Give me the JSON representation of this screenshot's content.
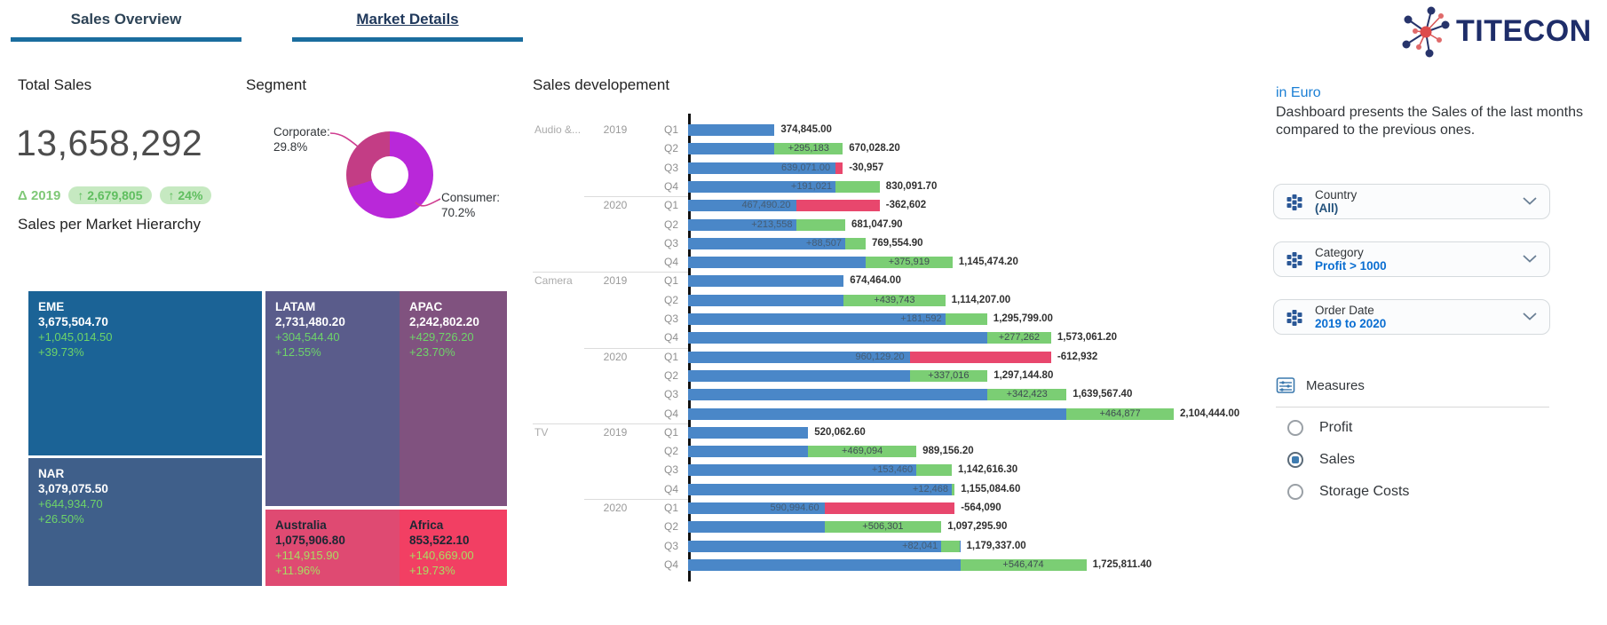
{
  "tabs": [
    {
      "label": "Sales Overview",
      "active": true
    },
    {
      "label": "Market Details",
      "active": false
    }
  ],
  "kpi": {
    "title": "Total Sales",
    "value": "13,658,292",
    "delta_year": "Δ 2019",
    "badges": [
      "↑ 2,679,805",
      "↑ 24%"
    ]
  },
  "segment": {
    "title": "Segment",
    "slices": [
      {
        "name": "Consumer",
        "pct": 70.2,
        "color": "#b928d9"
      },
      {
        "name": "Corporate",
        "pct": 29.8,
        "color": "#c33d85"
      }
    ],
    "corporate_label": "Corporate:",
    "corporate_pct": "29.8%",
    "consumer_label": "Consumer:",
    "consumer_pct": "70.2%",
    "leader_line_color": "#cf3d90"
  },
  "treemap": {
    "title": "Sales per Market Hierarchy",
    "tiles": [
      {
        "name": "EME",
        "value": "3,675,504.70",
        "delta": "+1,045,014.50",
        "pct": "+39.73%",
        "color": "#1b6396",
        "dark": false
      },
      {
        "name": "NAR",
        "value": "3,079,075.50",
        "delta": "+644,934.70",
        "pct": "+26.50%",
        "color": "#3f5f8a",
        "dark": false
      },
      {
        "name": "LATAM",
        "value": "2,731,480.20",
        "delta": "+304,544.40",
        "pct": "+12.55%",
        "color": "#5a5c8b",
        "dark": false
      },
      {
        "name": "Australia",
        "value": "1,075,906.80",
        "delta": "+114,915.90",
        "pct": "+11.96%",
        "color": "#df4a72",
        "dark": true
      },
      {
        "name": "APAC",
        "value": "2,242,802.20",
        "delta": "+429,726.20",
        "pct": "+23.70%",
        "color": "#80527f",
        "dark": false
      },
      {
        "name": "Africa",
        "value": "853,522.10",
        "delta": "+140,669.00",
        "pct": "+19.73%",
        "color": "#f23f63",
        "dark": true
      }
    ]
  },
  "chart_data": {
    "type": "bar",
    "title": "Sales developement",
    "orientation": "horizontal",
    "legend": "none",
    "axis": {
      "min_value": 0,
      "max_value": 2104444,
      "gridlines": false
    },
    "colors": {
      "bar": "#4a87c8",
      "increase": "#7bce74",
      "decrease": "#e8476d"
    },
    "rows": [
      {
        "product": "Audio &...",
        "year": "2019",
        "quarter": "Q1",
        "value": 374845.0,
        "delta": null,
        "kind": "base",
        "sep": null,
        "value_label": "374,845.00",
        "delta_label": ""
      },
      {
        "product": "",
        "year": "",
        "quarter": "Q2",
        "value": 670028.2,
        "delta": 295183,
        "kind": "inc",
        "sep": null,
        "value_label": "670,028.20",
        "delta_label": "+295,183"
      },
      {
        "product": "",
        "year": "",
        "quarter": "Q3",
        "value": 639071.0,
        "delta": -30957,
        "kind": "dec",
        "sep": null,
        "value_label": "639,071.00",
        "delta_label": "-30,957"
      },
      {
        "product": "",
        "year": "",
        "quarter": "Q4",
        "value": 830091.7,
        "delta": 191021,
        "kind": "inc",
        "sep": null,
        "value_label": "830,091.70",
        "delta_label": "+191,021"
      },
      {
        "product": "",
        "year": "2020",
        "quarter": "Q1",
        "value": 467490.2,
        "delta": -362602,
        "kind": "dec",
        "sep": "year",
        "value_label": "467,490.20",
        "delta_label": "-362,602"
      },
      {
        "product": "",
        "year": "",
        "quarter": "Q2",
        "value": 681047.9,
        "delta": 213558,
        "kind": "inc",
        "sep": null,
        "value_label": "681,047.90",
        "delta_label": "+213,558"
      },
      {
        "product": "",
        "year": "",
        "quarter": "Q3",
        "value": 769554.9,
        "delta": 88507,
        "kind": "inc",
        "sep": null,
        "value_label": "769,554.90",
        "delta_label": "+88,507"
      },
      {
        "product": "",
        "year": "",
        "quarter": "Q4",
        "value": 1145474.2,
        "delta": 375919,
        "kind": "inc",
        "sep": null,
        "value_label": "1,145,474.20",
        "delta_label": "+375,919"
      },
      {
        "product": "Camera",
        "year": "2019",
        "quarter": "Q1",
        "value": 674464.0,
        "delta": null,
        "kind": "base",
        "sep": "product",
        "value_label": "674,464.00",
        "delta_label": ""
      },
      {
        "product": "",
        "year": "",
        "quarter": "Q2",
        "value": 1114207.0,
        "delta": 439743,
        "kind": "inc",
        "sep": null,
        "value_label": "1,114,207.00",
        "delta_label": "+439,743"
      },
      {
        "product": "",
        "year": "",
        "quarter": "Q3",
        "value": 1295799.0,
        "delta": 181592,
        "kind": "inc",
        "sep": null,
        "value_label": "1,295,799.00",
        "delta_label": "+181,592"
      },
      {
        "product": "",
        "year": "",
        "quarter": "Q4",
        "value": 1573061.2,
        "delta": 277262,
        "kind": "inc",
        "sep": null,
        "value_label": "1,573,061.20",
        "delta_label": "+277,262"
      },
      {
        "product": "",
        "year": "2020",
        "quarter": "Q1",
        "value": 960129.2,
        "delta": -612932,
        "kind": "dec",
        "sep": "year",
        "value_label": "960,129.20",
        "delta_label": "-612,932"
      },
      {
        "product": "",
        "year": "",
        "quarter": "Q2",
        "value": 1297144.8,
        "delta": 337016,
        "kind": "inc",
        "sep": null,
        "value_label": "1,297,144.80",
        "delta_label": "+337,016"
      },
      {
        "product": "",
        "year": "",
        "quarter": "Q3",
        "value": 1639567.4,
        "delta": 342423,
        "kind": "inc",
        "sep": null,
        "value_label": "1,639,567.40",
        "delta_label": "+342,423"
      },
      {
        "product": "",
        "year": "",
        "quarter": "Q4",
        "value": 2104444.0,
        "delta": 464877,
        "kind": "inc",
        "sep": null,
        "value_label": "2,104,444.00",
        "delta_label": "+464,877"
      },
      {
        "product": "TV",
        "year": "2019",
        "quarter": "Q1",
        "value": 520062.6,
        "delta": null,
        "kind": "base",
        "sep": "product",
        "value_label": "520,062.60",
        "delta_label": ""
      },
      {
        "product": "",
        "year": "",
        "quarter": "Q2",
        "value": 989156.2,
        "delta": 469094,
        "kind": "inc",
        "sep": null,
        "value_label": "989,156.20",
        "delta_label": "+469,094"
      },
      {
        "product": "",
        "year": "",
        "quarter": "Q3",
        "value": 1142616.3,
        "delta": 153460,
        "kind": "inc",
        "sep": null,
        "value_label": "1,142,616.30",
        "delta_label": "+153,460"
      },
      {
        "product": "",
        "year": "",
        "quarter": "Q4",
        "value": 1155084.6,
        "delta": 12468,
        "kind": "inc",
        "sep": null,
        "value_label": "1,155,084.60",
        "delta_label": "+12,468"
      },
      {
        "product": "",
        "year": "2020",
        "quarter": "Q1",
        "value": 590994.6,
        "delta": -564090,
        "kind": "dec",
        "sep": "year",
        "value_label": "590,994.60",
        "delta_label": "-564,090"
      },
      {
        "product": "",
        "year": "",
        "quarter": "Q2",
        "value": 1097295.9,
        "delta": 506301,
        "kind": "inc",
        "sep": null,
        "value_label": "1,097,295.90",
        "delta_label": "+506,301"
      },
      {
        "product": "",
        "year": "",
        "quarter": "Q3",
        "value": 1179337.0,
        "delta": 82041,
        "kind": "inc",
        "sep": null,
        "value_label": "1,179,337.00",
        "delta_label": "+82,041"
      },
      {
        "product": "",
        "year": "",
        "quarter": "Q4",
        "value": 1725811.4,
        "delta": 546474,
        "kind": "inc",
        "sep": null,
        "value_label": "1,725,811.40",
        "delta_label": "+546,474"
      }
    ]
  },
  "panel": {
    "in_euro": "in Euro",
    "description": "Dashboard presents the Sales of the last months compared to the previous ones.",
    "filters": [
      {
        "label": "Country",
        "value": "(All)"
      },
      {
        "label": "Category",
        "value": "Profit > 1000"
      },
      {
        "label": "Order Date",
        "value": "2019 to 2020"
      }
    ],
    "measures": {
      "title": "Measures",
      "options": [
        {
          "label": "Profit",
          "selected": false
        },
        {
          "label": "Sales",
          "selected": true
        },
        {
          "label": "Storage Costs",
          "selected": false
        }
      ]
    }
  },
  "logo": {
    "text": "TITECON"
  }
}
